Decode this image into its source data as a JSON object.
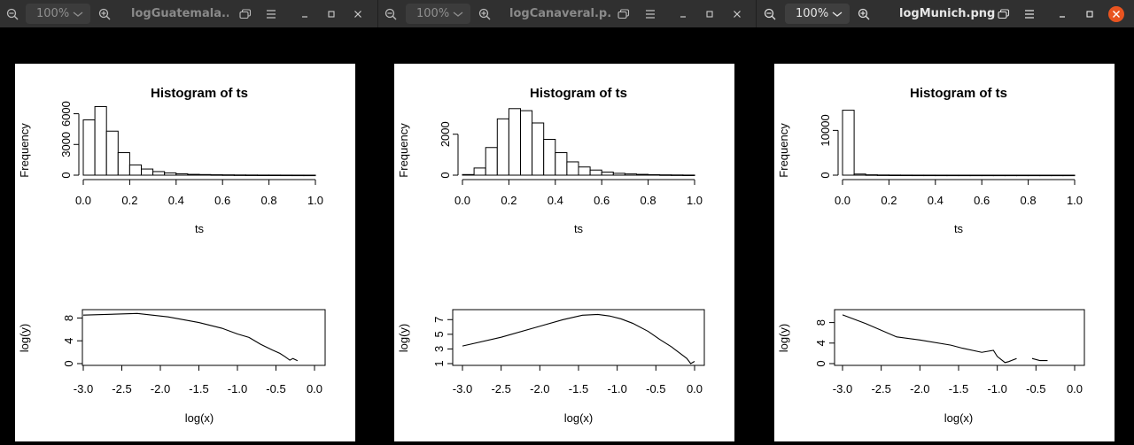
{
  "windows": [
    {
      "title": "logGuatemala....",
      "zoom": "100%",
      "active": false,
      "plot": {
        "hist_title": "Histogram of ts",
        "hist_ylabel": "Frequency",
        "hist_xlabel": "ts",
        "hist_yticks": [
          "0",
          "3000",
          "6000"
        ],
        "hist_xticks": [
          "0.0",
          "0.2",
          "0.4",
          "0.6",
          "0.8",
          "1.0"
        ],
        "line_ylabel": "log(y)",
        "line_xlabel": "log(x)",
        "line_yticks": [
          "0",
          "4",
          "8"
        ],
        "line_xticks": [
          "-3.0",
          "-2.5",
          "-2.0",
          "-1.5",
          "-1.0",
          "-0.5",
          "0.0"
        ]
      }
    },
    {
      "title": "logCanaveral.p...",
      "zoom": "100%",
      "active": false,
      "plot": {
        "hist_title": "Histogram of ts",
        "hist_ylabel": "Frequency",
        "hist_xlabel": "ts",
        "hist_yticks": [
          "0",
          "2000"
        ],
        "hist_xticks": [
          "0.0",
          "0.2",
          "0.4",
          "0.6",
          "0.8",
          "1.0"
        ],
        "line_ylabel": "log(y)",
        "line_xlabel": "log(x)",
        "line_yticks": [
          "1",
          "3",
          "5",
          "7"
        ],
        "line_xticks": [
          "-3.0",
          "-2.5",
          "-2.0",
          "-1.5",
          "-1.0",
          "-0.5",
          "0.0"
        ]
      }
    },
    {
      "title": "logMunich.png",
      "zoom": "100%",
      "active": true,
      "plot": {
        "hist_title": "Histogram of ts",
        "hist_ylabel": "Frequency",
        "hist_xlabel": "ts",
        "hist_yticks": [
          "0",
          "10000"
        ],
        "hist_xticks": [
          "0.0",
          "0.2",
          "0.4",
          "0.6",
          "0.8",
          "1.0"
        ],
        "line_ylabel": "log(y)",
        "line_xlabel": "log(x)",
        "line_yticks": [
          "0",
          "4",
          "8"
        ],
        "line_xticks": [
          "-3.0",
          "-2.5",
          "-2.0",
          "-1.5",
          "-1.0",
          "-0.5",
          "0.0"
        ]
      }
    }
  ],
  "colors": {
    "header_bg": "#303030",
    "close_active": "#e95420"
  },
  "chart_data": [
    {
      "type": "bar",
      "title": "Histogram of ts",
      "xlabel": "ts",
      "ylabel": "Frequency",
      "bin_width": 0.05,
      "x_start": 0.0,
      "xlim": [
        0,
        1
      ],
      "ylim": [
        0,
        7000
      ],
      "values": [
        5400,
        6700,
        4300,
        2200,
        1000,
        600,
        350,
        220,
        130,
        80,
        60,
        40,
        30,
        20,
        15,
        10,
        8,
        5,
        3,
        2
      ]
    },
    {
      "type": "line",
      "xlabel": "log(x)",
      "ylabel": "log(y)",
      "xlim": [
        -3.0,
        0.0
      ],
      "ylim": [
        0,
        9
      ],
      "x": [
        -3.0,
        -2.3,
        -1.9,
        -1.5,
        -1.2,
        -1.0,
        -0.85,
        -0.7,
        -0.55,
        -0.45,
        -0.38,
        -0.32,
        -0.28,
        -0.22
      ],
      "y": [
        8.5,
        8.8,
        8.2,
        7.2,
        6.2,
        5.2,
        4.6,
        3.4,
        2.4,
        1.8,
        1.2,
        0.6,
        0.9,
        0.5
      ]
    },
    {
      "type": "bar",
      "title": "Histogram of ts",
      "xlabel": "ts",
      "ylabel": "Frequency",
      "bin_width": 0.05,
      "x_start": 0.0,
      "xlim": [
        0,
        1
      ],
      "ylim": [
        0,
        3500
      ],
      "values": [
        30,
        350,
        1350,
        2750,
        3250,
        3150,
        2550,
        1750,
        1100,
        650,
        400,
        250,
        150,
        90,
        60,
        40,
        25,
        15,
        10,
        5
      ]
    },
    {
      "type": "line",
      "xlabel": "log(x)",
      "ylabel": "log(y)",
      "xlim": [
        -3.0,
        0.0
      ],
      "ylim": [
        1,
        8
      ],
      "x": [
        -3.0,
        -2.5,
        -2.0,
        -1.7,
        -1.45,
        -1.25,
        -1.1,
        -0.95,
        -0.8,
        -0.6,
        -0.45,
        -0.3,
        -0.2,
        -0.1,
        -0.05,
        0.0
      ],
      "y": [
        3.4,
        4.6,
        6.1,
        7.0,
        7.6,
        7.7,
        7.5,
        7.1,
        6.5,
        5.4,
        4.3,
        3.3,
        2.5,
        1.7,
        1.0,
        1.3
      ]
    },
    {
      "type": "bar",
      "title": "Histogram of ts",
      "xlabel": "ts",
      "ylabel": "Frequency",
      "bin_width": 0.05,
      "x_start": 0.0,
      "xlim": [
        0,
        1
      ],
      "ylim": [
        0,
        16000
      ],
      "values": [
        14500,
        250,
        80,
        40,
        25,
        15,
        10,
        8,
        5,
        4,
        3,
        2,
        2,
        1,
        1,
        1,
        1,
        0,
        0,
        0
      ]
    },
    {
      "type": "line",
      "xlabel": "log(x)",
      "ylabel": "log(y)",
      "xlim": [
        -3.0,
        0.0
      ],
      "ylim": [
        0,
        10
      ],
      "segments": [
        {
          "x": [
            -3.0,
            -2.7,
            -2.3,
            -2.0,
            -1.6,
            -1.45,
            -1.2,
            -1.05,
            -1.0,
            -0.9,
            -0.85,
            -0.75
          ],
          "y": [
            9.5,
            7.8,
            5.2,
            4.6,
            3.6,
            3.0,
            2.2,
            2.6,
            1.4,
            0.2,
            0.4,
            1.0
          ]
        },
        {
          "x": [
            -0.55,
            -0.45,
            -0.35
          ],
          "y": [
            1.0,
            0.6,
            0.6
          ]
        }
      ]
    }
  ]
}
